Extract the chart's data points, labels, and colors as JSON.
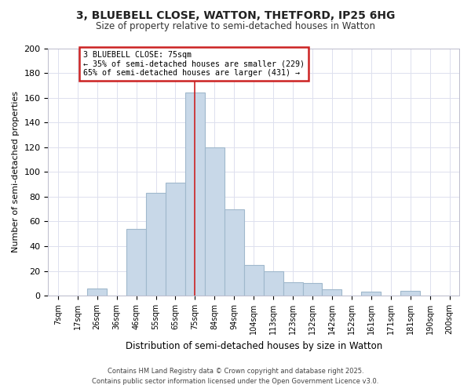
{
  "title": "3, BLUEBELL CLOSE, WATTON, THETFORD, IP25 6HG",
  "subtitle": "Size of property relative to semi-detached houses in Watton",
  "xlabel": "Distribution of semi-detached houses by size in Watton",
  "ylabel": "Number of semi-detached properties",
  "bar_labels": [
    "7sqm",
    "17sqm",
    "26sqm",
    "36sqm",
    "46sqm",
    "55sqm",
    "65sqm",
    "75sqm",
    "84sqm",
    "94sqm",
    "104sqm",
    "113sqm",
    "123sqm",
    "132sqm",
    "142sqm",
    "152sqm",
    "161sqm",
    "171sqm",
    "181sqm",
    "190sqm",
    "200sqm"
  ],
  "bar_values": [
    0,
    0,
    6,
    0,
    54,
    83,
    91,
    164,
    120,
    70,
    25,
    20,
    11,
    10,
    5,
    0,
    3,
    0,
    4,
    0,
    0
  ],
  "bar_color": "#c8d8e8",
  "bar_edge_color": "#a0b8cc",
  "marker_index": 7,
  "marker_line_color": "#cc2222",
  "annotation_title": "3 BLUEBELL CLOSE: 75sqm",
  "annotation_line1": "← 35% of semi-detached houses are smaller (229)",
  "annotation_line2": "65% of semi-detached houses are larger (431) →",
  "annotation_box_color": "#ffffff",
  "annotation_box_edge_color": "#cc2222",
  "annotation_text_color": "#000000",
  "ylim": [
    0,
    200
  ],
  "yticks": [
    0,
    20,
    40,
    60,
    80,
    100,
    120,
    140,
    160,
    180,
    200
  ],
  "bg_color": "#ffffff",
  "grid_color": "#dde0ee",
  "footer_line1": "Contains HM Land Registry data © Crown copyright and database right 2025.",
  "footer_line2": "Contains public sector information licensed under the Open Government Licence v3.0."
}
